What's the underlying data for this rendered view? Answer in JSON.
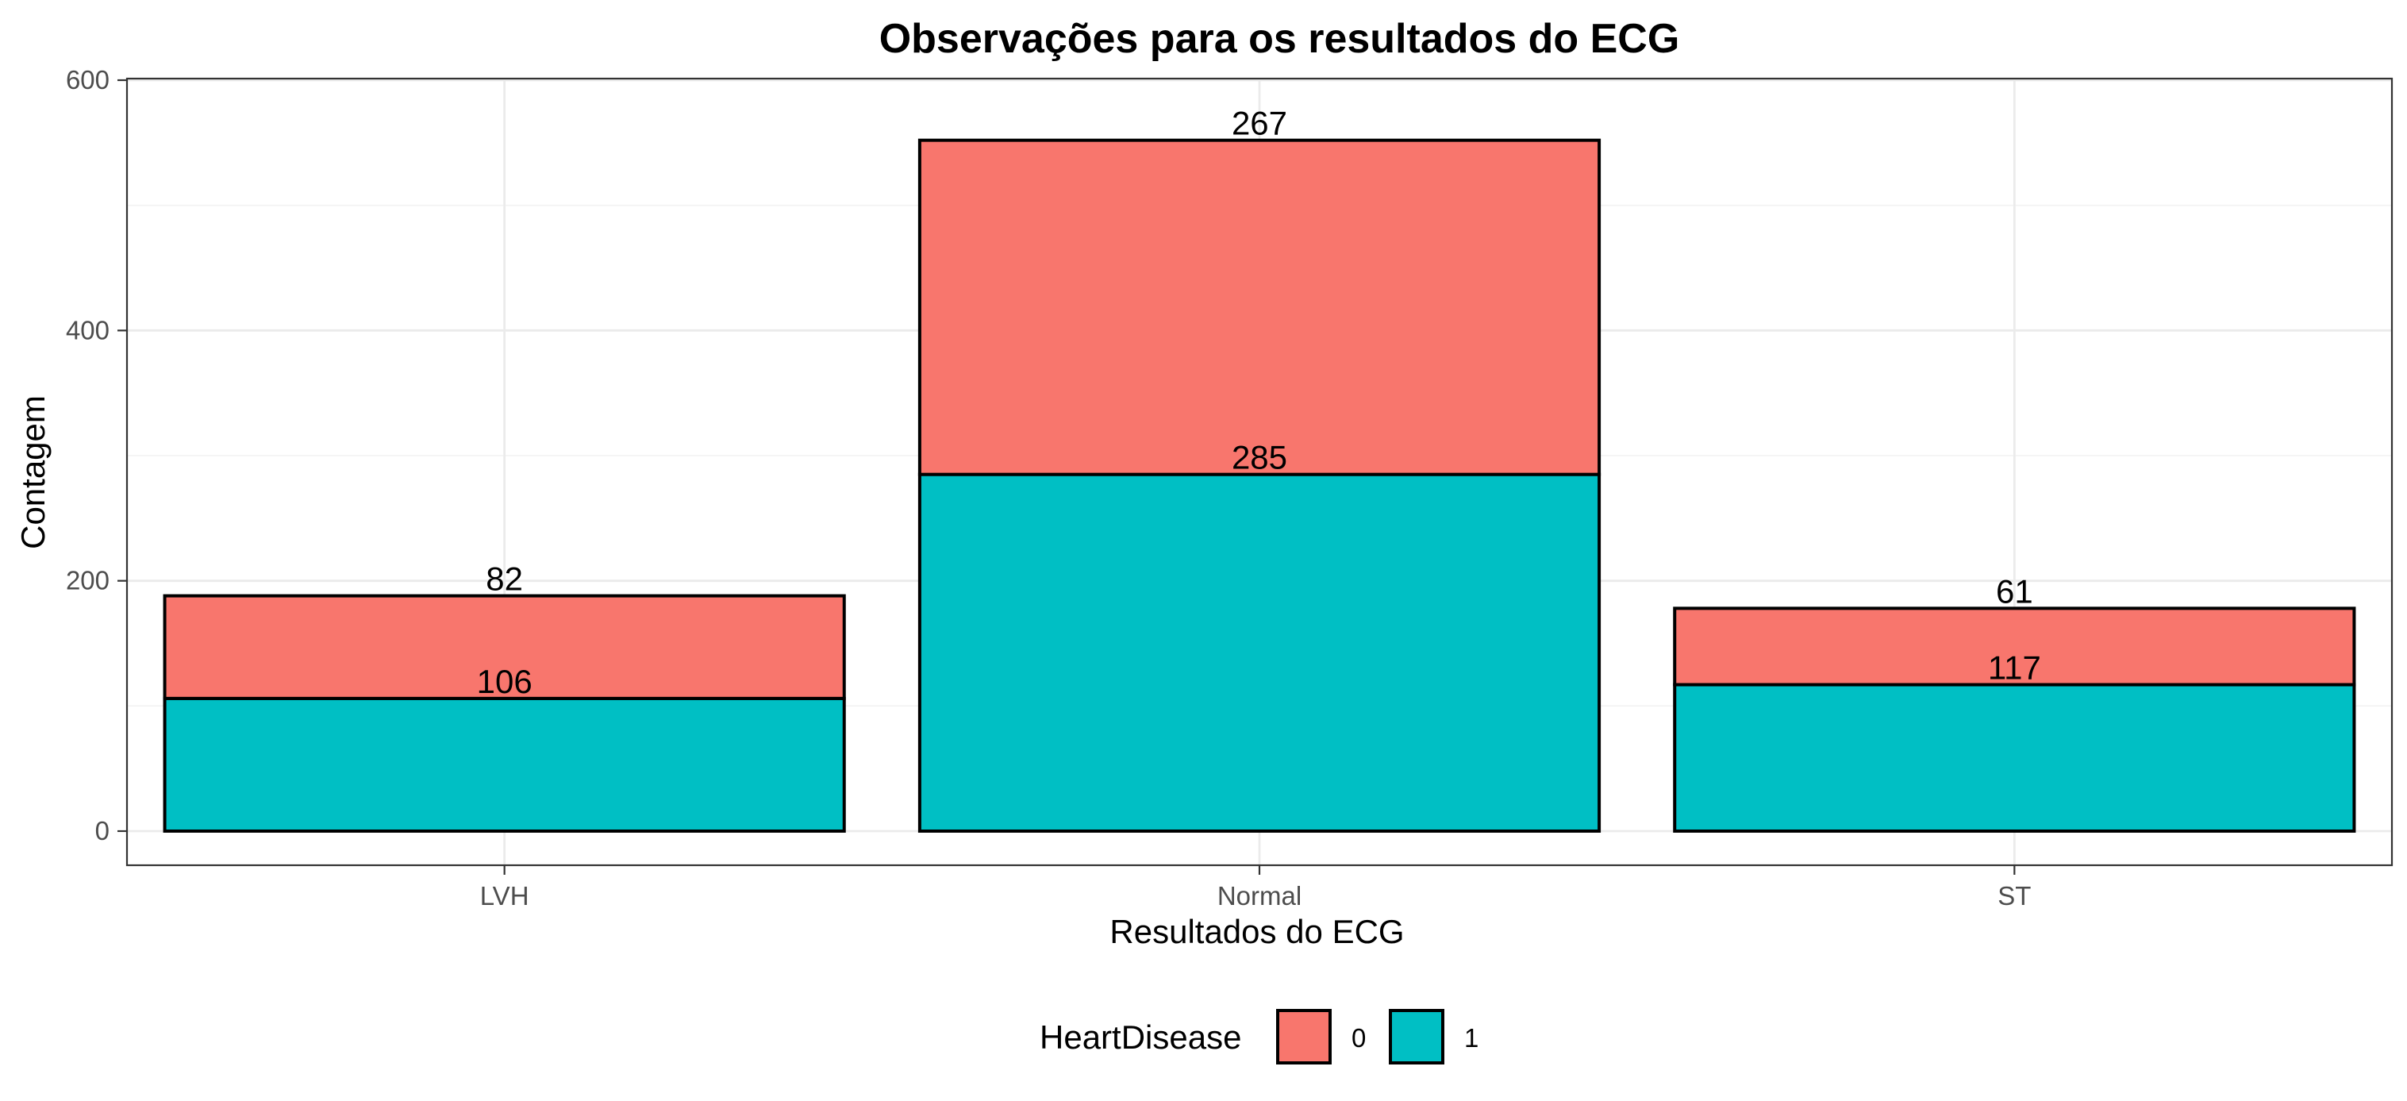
{
  "chart_data": {
    "type": "bar",
    "stacked": true,
    "title": "Observações para os resultados do ECG",
    "xlabel": "Resultados do ECG",
    "ylabel": "Contagem",
    "categories": [
      "LVH",
      "Normal",
      "ST"
    ],
    "ylim": [
      0,
      600
    ],
    "yticks": [
      0,
      200,
      400,
      600
    ],
    "grid": true,
    "series": [
      {
        "name": "1",
        "values": [
          106,
          285,
          117
        ],
        "color": "#00BFC4"
      },
      {
        "name": "0",
        "values": [
          82,
          267,
          61
        ],
        "color": "#F8766D"
      }
    ],
    "legend": {
      "title": "HeartDisease",
      "position": "bottom",
      "order": [
        "0",
        "1"
      ]
    }
  }
}
